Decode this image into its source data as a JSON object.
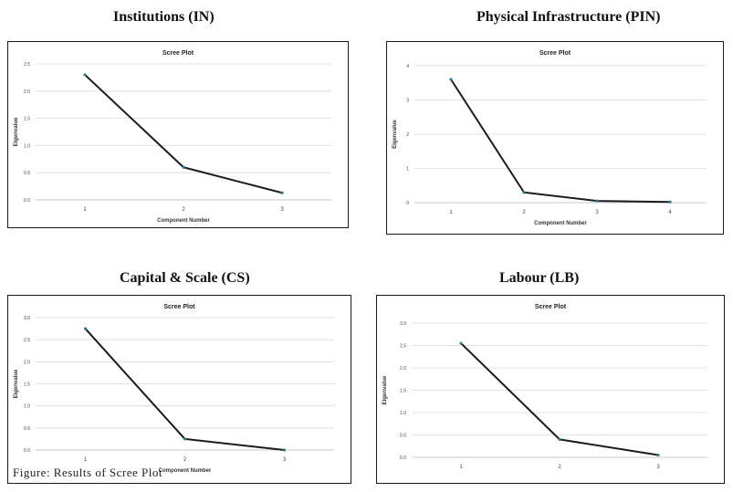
{
  "figure_caption": "Figure: Results of Scree Plot",
  "panels": [
    {
      "heading": "Institutions (IN)",
      "chart_data": {
        "type": "line",
        "title": "Scree Plot",
        "xlabel": "Component Number",
        "ylabel": "Eigenvalue",
        "x": [
          1,
          2,
          3
        ],
        "y": [
          2.3,
          0.6,
          0.13
        ],
        "xlim": [
          0.5,
          3.5
        ],
        "ylim": [
          0.0,
          2.5
        ],
        "yticks": [
          0.0,
          0.5,
          1.0,
          1.5,
          2.0,
          2.5
        ],
        "ytick_labels": [
          "0.0",
          "0.5",
          "1.0",
          "1.5",
          "2.0",
          "2.5"
        ],
        "grid": "horizontal",
        "line_color": "#1c1c1c",
        "marker_color": "#2e7d8c"
      }
    },
    {
      "heading": "Physical Infrastructure (PIN)",
      "chart_data": {
        "type": "line",
        "title": "Scree Plot",
        "xlabel": "Component Number",
        "ylabel": "Eigenvalue",
        "x": [
          1,
          2,
          3,
          4
        ],
        "y": [
          3.6,
          0.3,
          0.05,
          0.02
        ],
        "xlim": [
          0.5,
          4.5
        ],
        "ylim": [
          0,
          4
        ],
        "yticks": [
          0,
          1,
          2,
          3,
          4
        ],
        "ytick_labels": [
          "0",
          "1",
          "2",
          "3",
          "4"
        ],
        "grid": "horizontal",
        "line_color": "#1c1c1c",
        "marker_color": "#2e7d8c"
      }
    },
    {
      "heading": "Capital & Scale (CS)",
      "chart_data": {
        "type": "line",
        "title": "Scree Plot",
        "xlabel": "Component Number",
        "ylabel": "Eigenvalue",
        "x": [
          1,
          2,
          3
        ],
        "y": [
          2.75,
          0.25,
          0.0
        ],
        "xlim": [
          0.5,
          3.5
        ],
        "ylim": [
          0.0,
          3.0
        ],
        "yticks": [
          0.0,
          0.5,
          1.0,
          1.5,
          2.0,
          2.5,
          3.0
        ],
        "ytick_labels": [
          "0.0",
          "0.5",
          "1.0",
          "1.5",
          "2.0",
          "2.5",
          "3.0"
        ],
        "grid": "horizontal",
        "line_color": "#1c1c1c",
        "marker_color": "#2e7d8c"
      }
    },
    {
      "heading": "Labour (LB)",
      "chart_data": {
        "type": "line",
        "title": "Scree Plot",
        "xlabel": "",
        "ylabel": "Eigenvalue",
        "x": [
          1,
          2,
          3
        ],
        "y": [
          2.55,
          0.4,
          0.05
        ],
        "xlim": [
          0.5,
          3.5
        ],
        "ylim": [
          0.0,
          3.0
        ],
        "yticks": [
          0.0,
          0.5,
          1.0,
          1.5,
          2.0,
          2.5,
          3.0
        ],
        "ytick_labels": [
          "0.0",
          "0.5",
          "1.0",
          "1.5",
          "2.0",
          "2.5",
          "3.0"
        ],
        "grid": "horizontal",
        "line_color": "#1c1c1c",
        "marker_color": "#2e7d8c"
      }
    }
  ]
}
